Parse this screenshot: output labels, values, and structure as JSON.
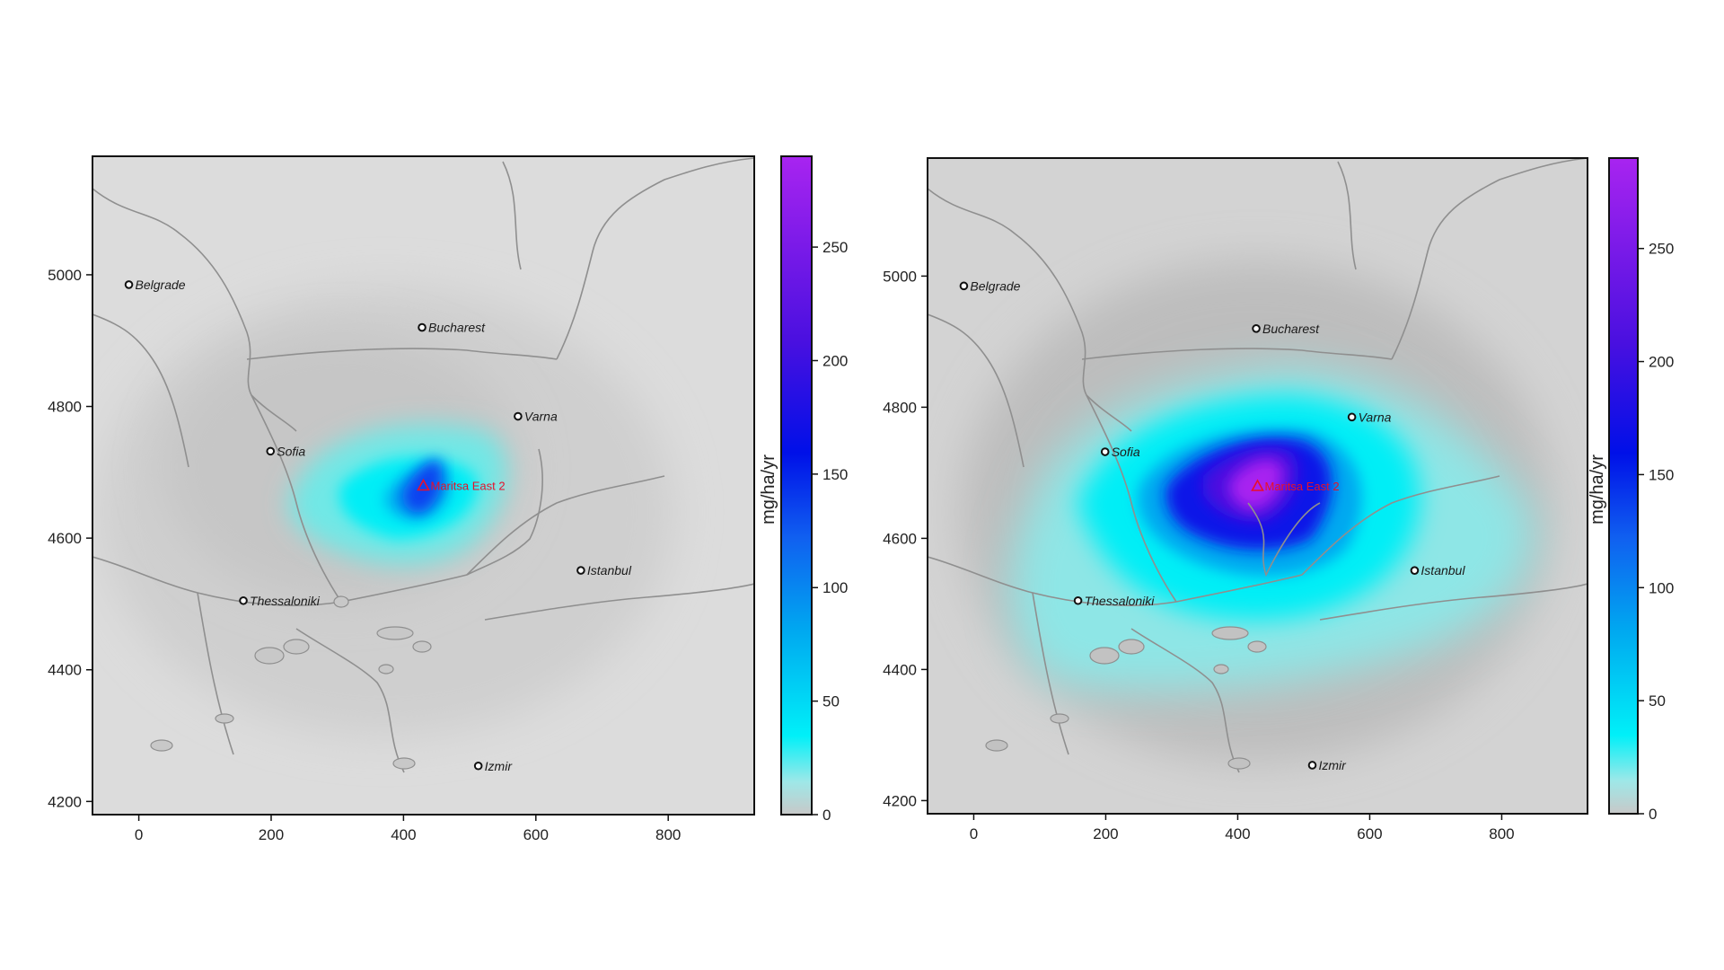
{
  "maps": [
    {
      "id": "left",
      "intensity": 0.45,
      "colorbar": {
        "unit": "mg/ha/yr",
        "ticks": [
          "0",
          "50",
          "100",
          "150",
          "200",
          "250"
        ]
      }
    },
    {
      "id": "right",
      "intensity": 1.0,
      "colorbar": {
        "unit": "mg/ha/yr",
        "ticks": [
          "0",
          "50",
          "100",
          "150",
          "200",
          "250"
        ]
      }
    }
  ],
  "axes": {
    "x_ticks": [
      "0",
      "200",
      "400",
      "600",
      "800"
    ],
    "y_ticks": [
      "4200",
      "4400",
      "4600",
      "4800",
      "5000"
    ],
    "x_range": [
      -70,
      930
    ],
    "y_range": [
      4180,
      5180
    ]
  },
  "cities": [
    {
      "name": "Belgrade",
      "x": -15,
      "y": 4985
    },
    {
      "name": "Bucharest",
      "x": 428,
      "y": 4920
    },
    {
      "name": "Varna",
      "x": 573,
      "y": 4785
    },
    {
      "name": "Sofia",
      "x": 199,
      "y": 4732
    },
    {
      "name": "Istanbul",
      "x": 668,
      "y": 4551
    },
    {
      "name": "Thessaloniki",
      "x": 158,
      "y": 4505
    },
    {
      "name": "Izmir",
      "x": 513,
      "y": 4254
    }
  ],
  "source": {
    "name": "Maritsa East 2",
    "x": 430,
    "y": 4680
  },
  "colors": {
    "scale": [
      "#c8c8c8",
      "#6fe8e6",
      "#00f0f8",
      "#00a8f0",
      "#1050f0",
      "#1000e8",
      "#5b10e0",
      "#a020f0"
    ],
    "background": "#d9d9d9",
    "border": "#8f8f8f"
  }
}
